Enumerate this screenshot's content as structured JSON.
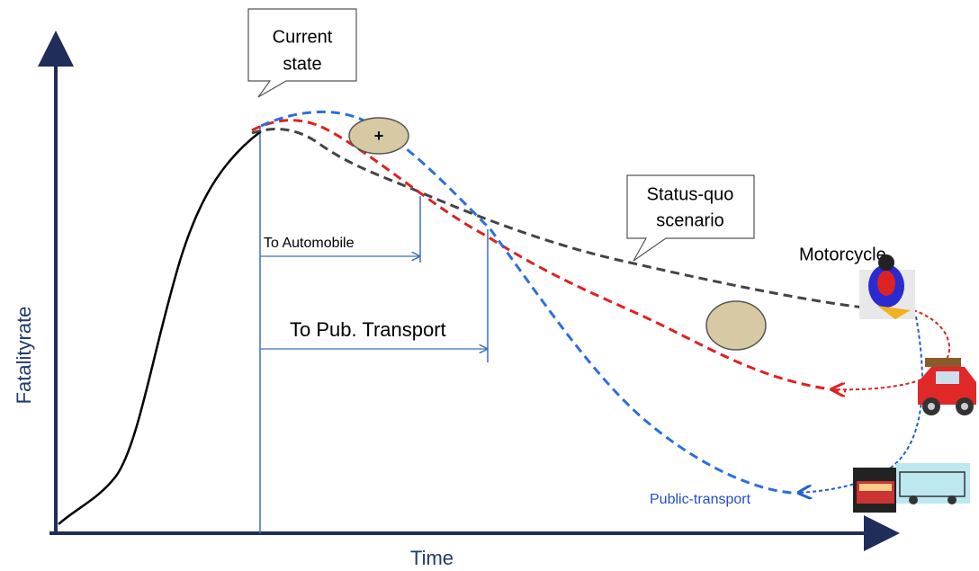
{
  "axes": {
    "y_label": "Fatalityrate",
    "x_label": "Time"
  },
  "callouts": [
    {
      "lines": [
        "Current",
        "state"
      ]
    },
    {
      "lines": [
        "Status-quo",
        "scenario"
      ]
    }
  ],
  "annotations": {
    "plus": "+",
    "to_automobile": "To Automobile",
    "to_public_transport": "To Pub. Transport"
  },
  "labels": {
    "motorcycle": "Motorcycle",
    "public_transport": "Public-transport"
  }
}
